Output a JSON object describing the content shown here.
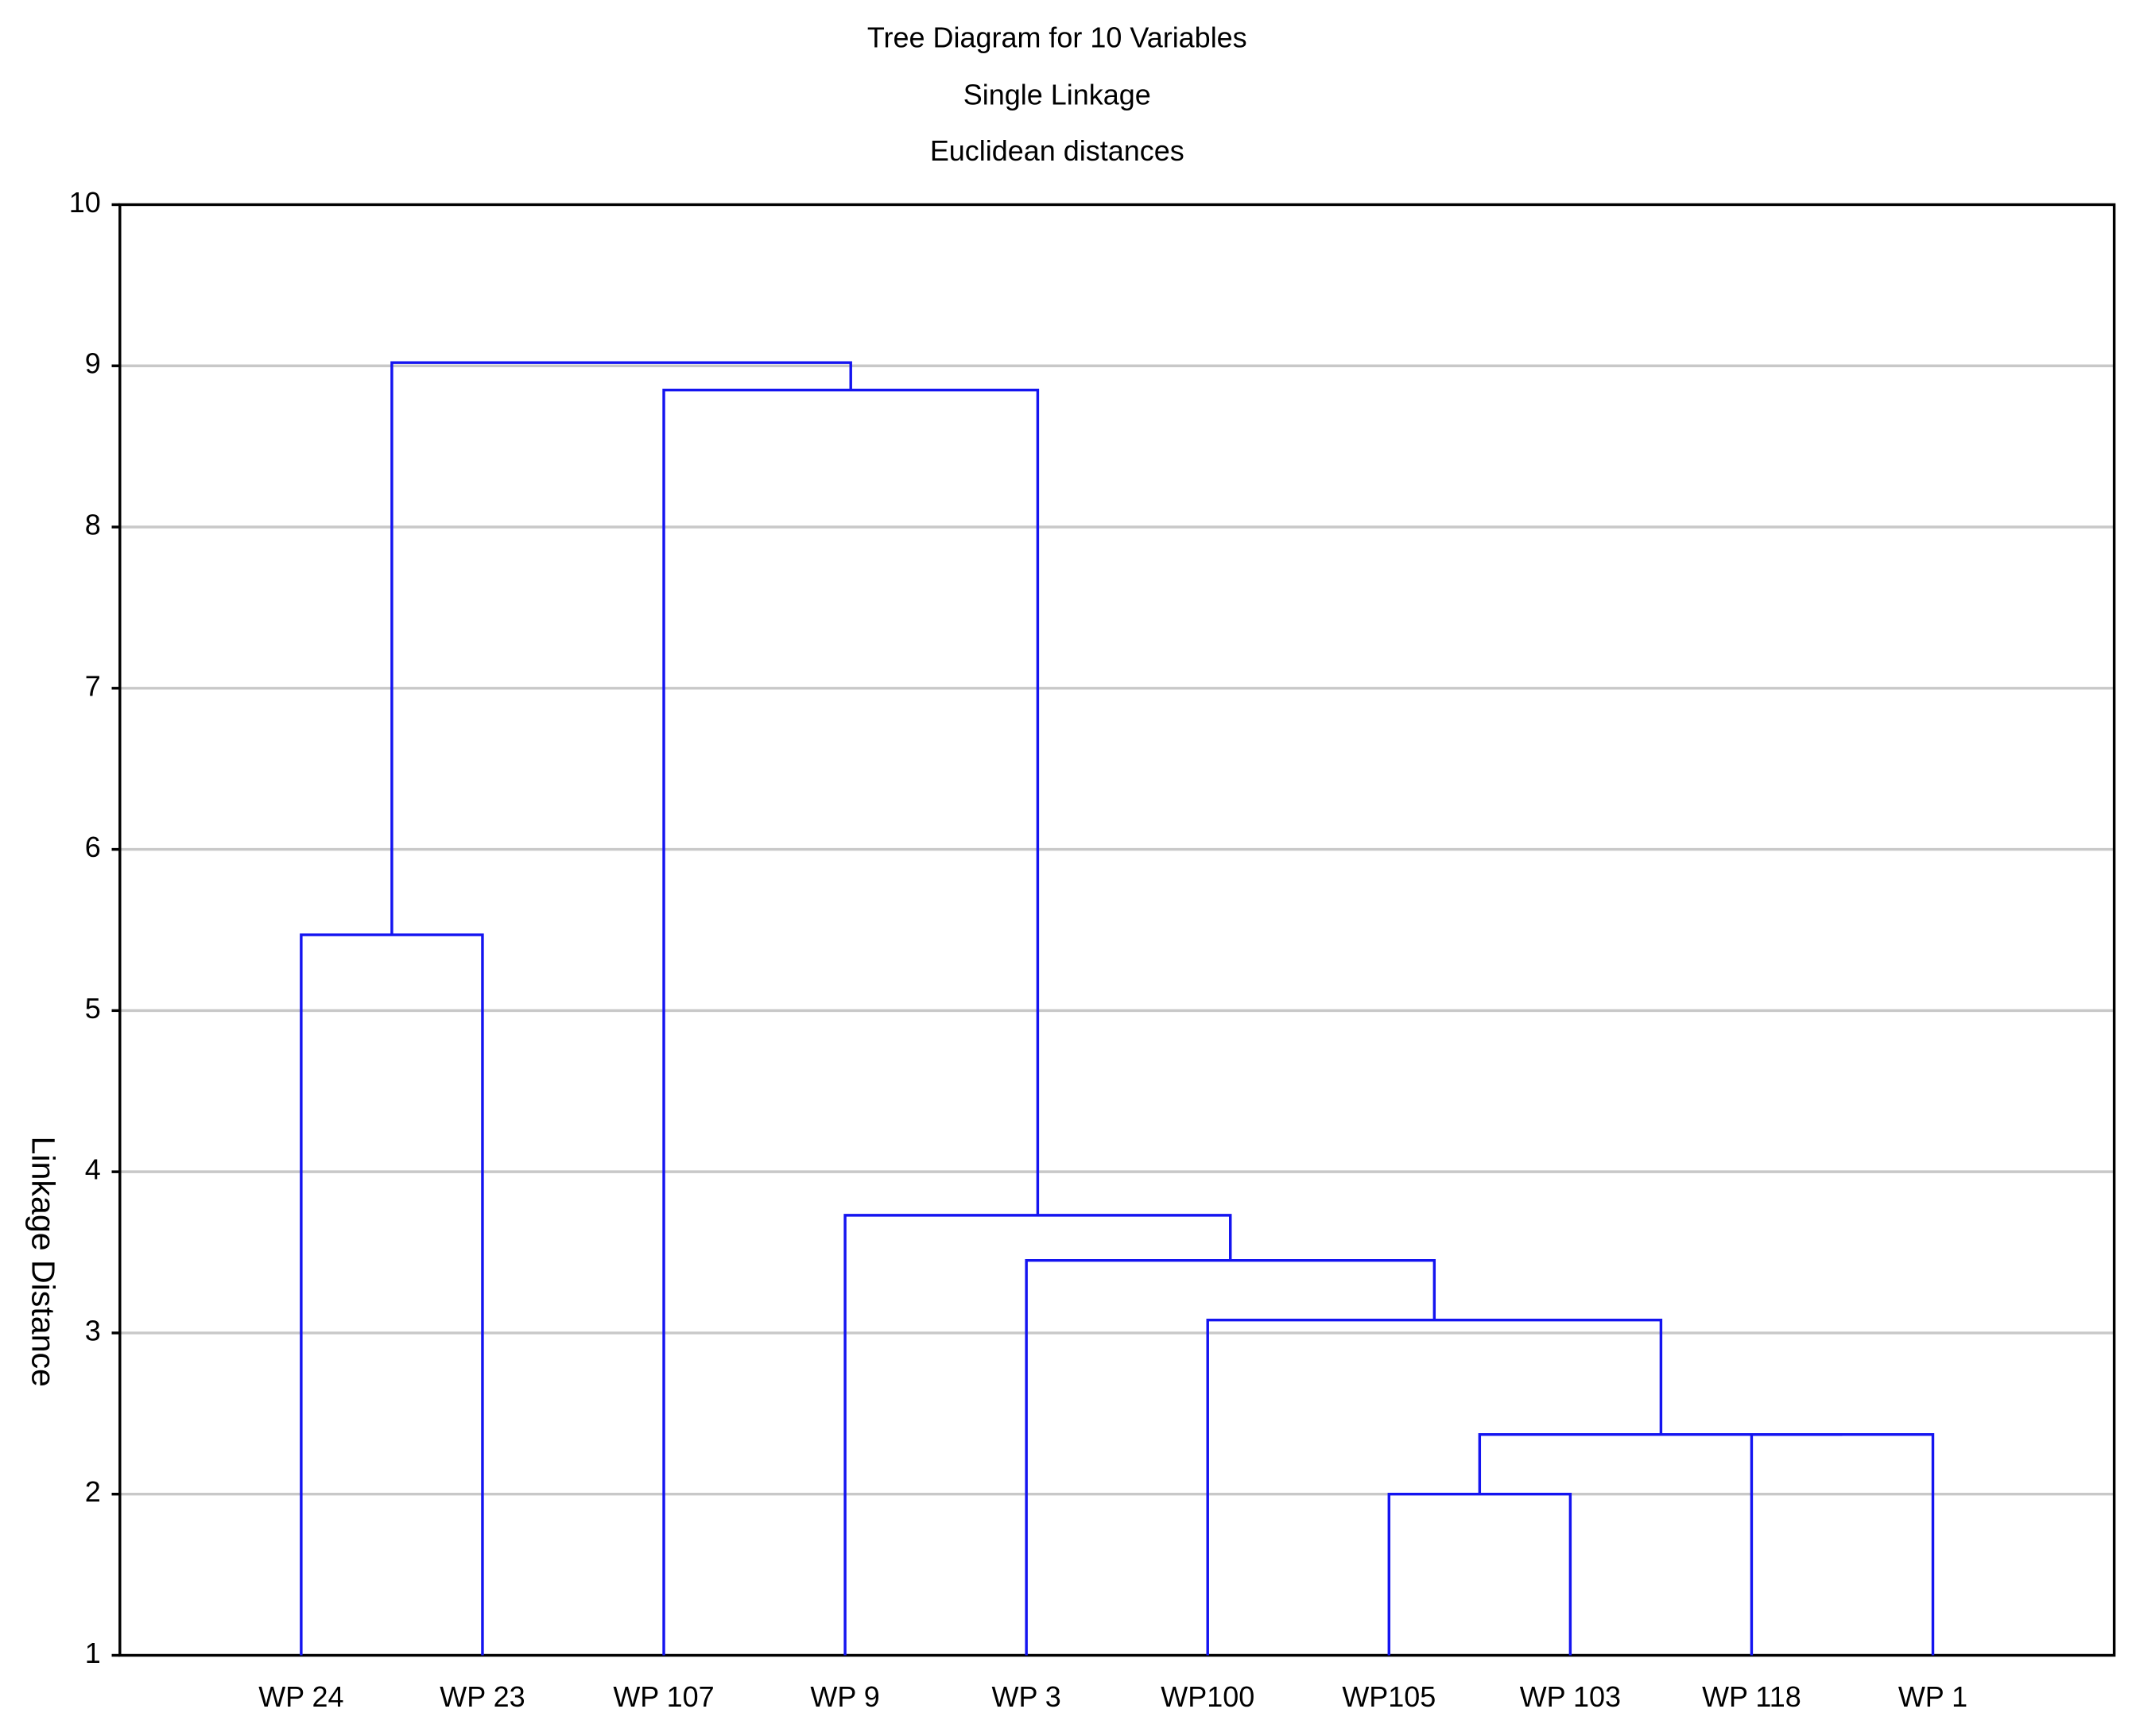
{
  "chart_data": {
    "type": "dendrogram",
    "title": "Tree Diagram for 10 Variables",
    "subtitle": [
      "Single Linkage",
      "Euclidean distances"
    ],
    "ylabel": "Linkage Distance",
    "categories": [
      "WP 24",
      "WP 23",
      "WP 107",
      "WP 9",
      "WP 3",
      "WP100",
      "WP105",
      "WP 103",
      "WP 118",
      "WP 1"
    ],
    "merges": [
      {
        "children": [
          0,
          1
        ],
        "height": 5.47
      },
      {
        "children": [
          6,
          7
        ],
        "height": 2.0
      },
      {
        "children": [
          8,
          9
        ],
        "height": 2.37
      },
      {
        "children": [
          11,
          12
        ],
        "height": 2.37
      },
      {
        "children": [
          5,
          13
        ],
        "height": 3.08
      },
      {
        "children": [
          4,
          14
        ],
        "height": 3.45
      },
      {
        "children": [
          3,
          15
        ],
        "height": 3.73
      },
      {
        "children": [
          2,
          16
        ],
        "height": 8.85
      },
      {
        "children": [
          10,
          17
        ],
        "height": 9.02
      }
    ],
    "color": "#1414f0",
    "ylim": [
      1,
      10
    ],
    "yticks": [
      1,
      2,
      3,
      4,
      5,
      6,
      7,
      8,
      9,
      10
    ],
    "grid": true
  }
}
